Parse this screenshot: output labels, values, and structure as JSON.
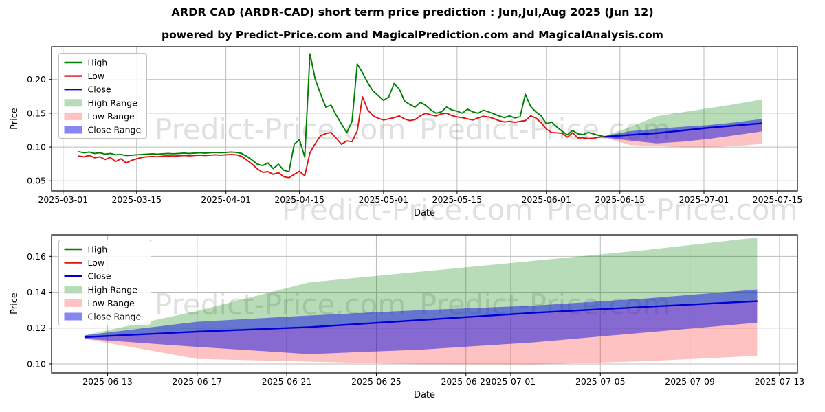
{
  "page": {
    "title": "ARDR CAD (ARDR-CAD) short term price prediction : Jun,Jul,Aug 2025 (Jun 12)",
    "subtitle": "powered by Predict-Price.com and MagicalPrediction.com and MagicalAnalysis.com",
    "watermark": "Predict-Price.com"
  },
  "colors": {
    "high_line": "#008000",
    "low_line": "#e01212",
    "close_line": "#0000d6",
    "high_range_fill": "rgba(0,128,0,0.28)",
    "low_range_fill": "rgba(255,0,0,0.24)",
    "close_range_fill": "rgba(15,15,225,0.50)",
    "grid": "#bbbbbb",
    "axis": "#000000",
    "watermark": "rgba(0,0,0,0.12)"
  },
  "chart_data": [
    {
      "type": "line",
      "name": "overview",
      "xlabel": "Date",
      "ylabel": "Price",
      "legend": [
        {
          "label": "High",
          "swatch": "line",
          "color_key": "high_line"
        },
        {
          "label": "Low",
          "swatch": "line",
          "color_key": "low_line"
        },
        {
          "label": "Close",
          "swatch": "line",
          "color_key": "close_line"
        },
        {
          "label": "High Range",
          "swatch": "patch",
          "color_key": "high_range_fill"
        },
        {
          "label": "Low Range",
          "swatch": "patch",
          "color_key": "low_range_fill"
        },
        {
          "label": "Close Range",
          "swatch": "patch",
          "color_key": "close_range_fill"
        }
      ],
      "x_ticks": [
        {
          "label": "2025-03-01",
          "day": 0
        },
        {
          "label": "2025-03-15",
          "day": 14
        },
        {
          "label": "2025-04-01",
          "day": 31
        },
        {
          "label": "2025-04-15",
          "day": 45
        },
        {
          "label": "2025-05-01",
          "day": 61
        },
        {
          "label": "2025-05-15",
          "day": 75
        },
        {
          "label": "2025-06-01",
          "day": 92
        },
        {
          "label": "2025-06-15",
          "day": 106
        },
        {
          "label": "2025-07-01",
          "day": 122
        },
        {
          "label": "2025-07-15",
          "day": 136
        }
      ],
      "y_ticks": [
        {
          "label": "0.05",
          "value": 0.05
        },
        {
          "label": "0.10",
          "value": 0.1
        },
        {
          "label": "0.15",
          "value": 0.15
        },
        {
          "label": "0.20",
          "value": 0.2
        }
      ],
      "xlim_days": [
        -2.2,
        139.8
      ],
      "ylim": [
        0.035,
        0.2485
      ],
      "hist": {
        "start_day": 3,
        "high": [
          0.093,
          0.0915,
          0.0925,
          0.0905,
          0.0915,
          0.0895,
          0.0905,
          0.0885,
          0.089,
          0.0875,
          0.088,
          0.0885,
          0.089,
          0.0895,
          0.09,
          0.0895,
          0.09,
          0.0905,
          0.09,
          0.0905,
          0.091,
          0.0905,
          0.091,
          0.0915,
          0.091,
          0.0915,
          0.092,
          0.0915,
          0.092,
          0.0925,
          0.092,
          0.0905,
          0.086,
          0.0805,
          0.0745,
          0.0725,
          0.0765,
          0.068,
          0.0745,
          0.0655,
          0.0635,
          0.104,
          0.111,
          0.085,
          0.238,
          0.2,
          0.179,
          0.159,
          0.162,
          0.147,
          0.134,
          0.121,
          0.138,
          0.223,
          0.21,
          0.195,
          0.183,
          0.176,
          0.169,
          0.174,
          0.194,
          0.186,
          0.168,
          0.163,
          0.159,
          0.166,
          0.162,
          0.155,
          0.15,
          0.152,
          0.159,
          0.155,
          0.153,
          0.15,
          0.156,
          0.152,
          0.15,
          0.1545,
          0.152,
          0.149,
          0.146,
          0.1435,
          0.146,
          0.143,
          0.145,
          0.178,
          0.16,
          0.152,
          0.146,
          0.1345,
          0.137,
          0.1295,
          0.1235,
          0.118,
          0.1245,
          0.1195,
          0.1185,
          0.1215,
          0.1195,
          0.117,
          0.1155
        ],
        "low": [
          0.0865,
          0.0855,
          0.0875,
          0.084,
          0.0855,
          0.0815,
          0.0845,
          0.0785,
          0.0825,
          0.0765,
          0.08,
          0.0825,
          0.0845,
          0.0855,
          0.086,
          0.0855,
          0.0865,
          0.087,
          0.0865,
          0.087,
          0.0875,
          0.087,
          0.0875,
          0.088,
          0.0875,
          0.088,
          0.0885,
          0.088,
          0.0885,
          0.089,
          0.0885,
          0.086,
          0.0805,
          0.0745,
          0.0675,
          0.0625,
          0.0635,
          0.0595,
          0.062,
          0.056,
          0.0545,
          0.0595,
          0.064,
          0.0575,
          0.0915,
          0.105,
          0.1165,
          0.12,
          0.1215,
          0.113,
          0.104,
          0.109,
          0.108,
          0.124,
          0.1745,
          0.155,
          0.146,
          0.1425,
          0.14,
          0.1415,
          0.1435,
          0.146,
          0.1415,
          0.139,
          0.1405,
          0.146,
          0.15,
          0.1475,
          0.146,
          0.149,
          0.15,
          0.1465,
          0.1445,
          0.1435,
          0.1415,
          0.14,
          0.143,
          0.1455,
          0.1445,
          0.142,
          0.139,
          0.137,
          0.138,
          0.1365,
          0.138,
          0.139,
          0.146,
          0.143,
          0.136,
          0.1265,
          0.1215,
          0.121,
          0.1205,
          0.1145,
          0.121,
          0.1135,
          0.1135,
          0.1125,
          0.113,
          0.1145,
          0.115
        ]
      },
      "pred": {
        "days": [
          103,
          108,
          113,
          118,
          123,
          128,
          133
        ],
        "close": [
          0.115,
          0.118,
          0.1205,
          0.1245,
          0.1285,
          0.1318,
          0.135
        ],
        "close_hi": [
          0.116,
          0.1235,
          0.127,
          0.13,
          0.1325,
          0.1365,
          0.1415
        ],
        "close_lo": [
          0.114,
          0.1095,
          0.1055,
          0.108,
          0.112,
          0.1175,
          0.123
        ],
        "high_hi": [
          0.116,
          0.1295,
          0.1455,
          0.1515,
          0.1575,
          0.1635,
          0.1705
        ],
        "low_lo": [
          0.114,
          0.1028,
          0.1013,
          0.0998,
          0.0997,
          0.1015,
          0.1045
        ]
      }
    },
    {
      "type": "line",
      "name": "prediction-zoom",
      "xlabel": "Date",
      "ylabel": "Price",
      "legend": [
        {
          "label": "High",
          "swatch": "line",
          "color_key": "high_line"
        },
        {
          "label": "Low",
          "swatch": "line",
          "color_key": "low_line"
        },
        {
          "label": "Close",
          "swatch": "line",
          "color_key": "close_line"
        },
        {
          "label": "High Range",
          "swatch": "patch",
          "color_key": "high_range_fill"
        },
        {
          "label": "Low Range",
          "swatch": "patch",
          "color_key": "low_range_fill"
        },
        {
          "label": "Close Range",
          "swatch": "patch",
          "color_key": "close_range_fill"
        }
      ],
      "x_ticks": [
        {
          "label": "2025-06-13",
          "day": 104
        },
        {
          "label": "2025-06-17",
          "day": 108
        },
        {
          "label": "2025-06-21",
          "day": 112
        },
        {
          "label": "2025-06-25",
          "day": 116
        },
        {
          "label": "2025-06-29",
          "day": 120
        },
        {
          "label": "2025-07-01",
          "day": 122
        },
        {
          "label": "2025-07-05",
          "day": 126
        },
        {
          "label": "2025-07-09",
          "day": 130
        },
        {
          "label": "2025-07-13",
          "day": 134
        }
      ],
      "y_ticks": [
        {
          "label": "0.10",
          "value": 0.1
        },
        {
          "label": "0.12",
          "value": 0.12
        },
        {
          "label": "0.14",
          "value": 0.14
        },
        {
          "label": "0.16",
          "value": 0.16
        }
      ],
      "xlim_days": [
        101.5,
        134.8
      ],
      "ylim": [
        0.095,
        0.172
      ],
      "pred": {
        "days": [
          103,
          108,
          113,
          118,
          123,
          128,
          133
        ],
        "close": [
          0.115,
          0.118,
          0.1205,
          0.1245,
          0.1285,
          0.1318,
          0.135
        ],
        "close_hi": [
          0.116,
          0.1235,
          0.127,
          0.13,
          0.1325,
          0.1365,
          0.1415
        ],
        "close_lo": [
          0.114,
          0.1095,
          0.1055,
          0.108,
          0.112,
          0.1175,
          0.123
        ],
        "high_hi": [
          0.116,
          0.1295,
          0.1455,
          0.1515,
          0.1575,
          0.1635,
          0.1705
        ],
        "low_lo": [
          0.114,
          0.1028,
          0.1013,
          0.0998,
          0.0997,
          0.1015,
          0.1045
        ]
      }
    }
  ]
}
